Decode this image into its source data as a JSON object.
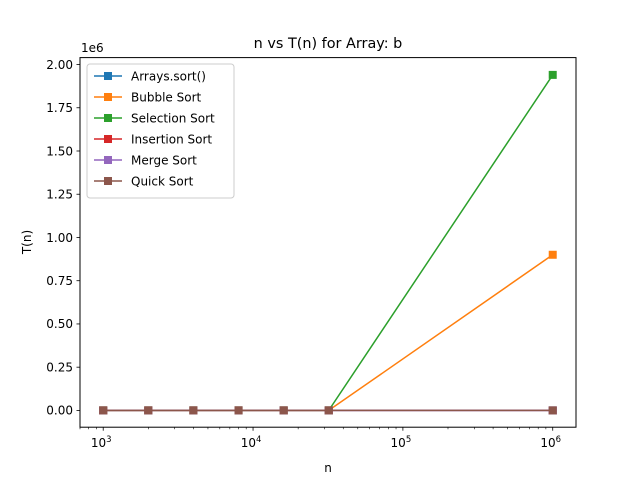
{
  "chart_data": {
    "type": "line",
    "title": "n vs T(n) for Array: b",
    "xlabel": "n",
    "ylabel": "T(n)",
    "y_offset_label": "1e6",
    "x_scale": "log",
    "xlim": [
      700,
      1430000
    ],
    "ylim": [
      -97000,
      2040000
    ],
    "x": [
      1000,
      2000,
      4000,
      8000,
      16000,
      32000,
      1000000
    ],
    "x_ticks": [
      {
        "value": 1000,
        "base": "10",
        "exp": "3"
      },
      {
        "value": 10000,
        "base": "10",
        "exp": "4"
      },
      {
        "value": 100000,
        "base": "10",
        "exp": "5"
      },
      {
        "value": 1000000,
        "base": "10",
        "exp": "6"
      }
    ],
    "y_ticks": [
      {
        "value": 0,
        "label": "0.00"
      },
      {
        "value": 250000,
        "label": "0.25"
      },
      {
        "value": 500000,
        "label": "0.50"
      },
      {
        "value": 750000,
        "label": "0.75"
      },
      {
        "value": 1000000,
        "label": "1.00"
      },
      {
        "value": 1250000,
        "label": "1.25"
      },
      {
        "value": 1500000,
        "label": "1.50"
      },
      {
        "value": 1750000,
        "label": "1.75"
      },
      {
        "value": 2000000,
        "label": "2.00"
      }
    ],
    "grid": false,
    "legend_position": "upper-left",
    "marker": "square",
    "series": [
      {
        "name": "Arrays.sort()",
        "color": "#1f77b4",
        "values": [
          0,
          0,
          0,
          0,
          0,
          0,
          0
        ]
      },
      {
        "name": "Bubble Sort",
        "color": "#ff7f0e",
        "values": [
          0,
          0,
          0,
          0,
          0,
          0,
          900000
        ]
      },
      {
        "name": "Selection Sort",
        "color": "#2ca02c",
        "values": [
          0,
          0,
          0,
          0,
          0,
          0,
          1940000
        ]
      },
      {
        "name": "Insertion Sort",
        "color": "#d62728",
        "values": [
          0,
          0,
          0,
          0,
          0,
          0,
          0
        ]
      },
      {
        "name": "Merge Sort",
        "color": "#9467bd",
        "values": [
          0,
          0,
          0,
          0,
          0,
          0,
          0
        ]
      },
      {
        "name": "Quick Sort",
        "color": "#8c564b",
        "values": [
          0,
          0,
          0,
          0,
          0,
          0,
          0
        ]
      }
    ]
  }
}
